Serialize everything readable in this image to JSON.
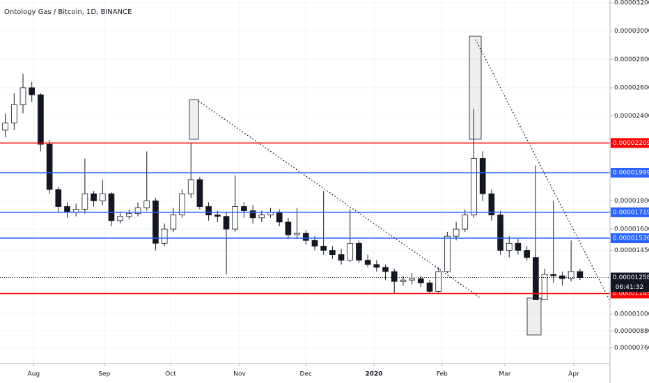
{
  "chart_data": {
    "type": "candlestick",
    "title": "Ontology Gas / Bitcoin, 1D, BINANCE",
    "open": [
      2.3e-05,
      2.35e-05,
      2.48e-05,
      2.6e-05,
      2.55e-05,
      2.2e-05,
      1.88e-05,
      1.76e-05,
      1.72e-05,
      1.74e-05,
      1.85e-05,
      1.8e-05,
      1.85e-05,
      1.66e-05,
      1.69e-05,
      1.71e-05,
      1.75e-05,
      1.8e-05,
      1.5e-05,
      1.6e-05,
      1.7e-05,
      1.85e-05,
      1.95e-05,
      1.76e-05,
      1.7e-05,
      1.69e-05,
      1.6e-05,
      1.76e-05,
      1.73e-05,
      1.68e-05,
      1.7e-05,
      1.72e-05,
      1.65e-05,
      1.56e-05,
      1.57e-05,
      1.52e-05,
      1.48e-05,
      1.45e-05,
      1.42e-05,
      1.38e-05,
      1.5e-05,
      1.38e-05,
      1.35e-05,
      1.33e-05,
      1.3e-05,
      1.23e-05,
      1.24e-05,
      1.25e-05,
      1.22e-05,
      1.16e-05,
      1.3e-05,
      1.55e-05,
      1.6e-05,
      1.7e-05,
      2.1e-05,
      1.85e-05,
      1.7e-05,
      1.45e-05,
      1.5e-05,
      1.45e-05,
      1.4e-05,
      1.1e-05,
      1.28e-05,
      1.27e-05,
      1.25e-05,
      1.3e-05
    ],
    "high": [
      2.42e-05,
      2.56e-05,
      2.7e-05,
      2.64e-05,
      2.56e-05,
      2.23e-05,
      1.9e-05,
      1.79e-05,
      1.78e-05,
      2.1e-05,
      1.87e-05,
      1.95e-05,
      1.86e-05,
      1.72e-05,
      1.74e-05,
      1.79e-05,
      2.15e-05,
      1.82e-05,
      1.64e-05,
      1.75e-05,
      1.88e-05,
      2.209e-05,
      1.97e-05,
      1.79e-05,
      1.73e-05,
      1.72e-05,
      1.98e-05,
      1.79e-05,
      1.77e-05,
      1.73e-05,
      1.75e-05,
      1.74e-05,
      1.68e-05,
      1.75e-05,
      1.59e-05,
      1.55e-05,
      1.87e-05,
      1.48e-05,
      1.46e-05,
      1.74e-05,
      1.52e-05,
      1.42e-05,
      1.38e-05,
      1.35e-05,
      1.32e-05,
      1.27e-05,
      1.29e-05,
      1.27e-05,
      1.24e-05,
      1.33e-05,
      1.58e-05,
      1.65e-05,
      1.74e-05,
      2.45e-05,
      2.15e-05,
      1.88e-05,
      1.73e-05,
      1.55e-05,
      1.53e-05,
      1.48e-05,
      2.05e-05,
      1.32e-05,
      1.8e-05,
      1.3e-05,
      1.52e-05,
      1.32e-05
    ],
    "low": [
      2.25e-05,
      2.3e-05,
      2.42e-05,
      2.5e-05,
      2.15e-05,
      1.85e-05,
      1.72e-05,
      1.68e-05,
      1.69e-05,
      1.71e-05,
      1.76e-05,
      1.77e-05,
      1.62e-05,
      1.64e-05,
      1.67e-05,
      1.69e-05,
      1.73e-05,
      1.45e-05,
      1.48e-05,
      1.58e-05,
      1.68e-05,
      1.82e-05,
      1.74e-05,
      1.66e-05,
      1.65e-05,
      1.28e-05,
      1.58e-05,
      1.68e-05,
      1.64e-05,
      1.65e-05,
      1.68e-05,
      1.62e-05,
      1.53e-05,
      1.53e-05,
      1.49e-05,
      1.45e-05,
      1.42e-05,
      1.39e-05,
      1.35e-05,
      1.37e-05,
      1.36e-05,
      1.33e-05,
      1.3e-05,
      1.24e-05,
      1.145e-05,
      1.2e-05,
      1.21e-05,
      1.19e-05,
      1.145e-05,
      1.15e-05,
      1.29e-05,
      1.52e-05,
      1.58e-05,
      1.68e-05,
      1.8e-05,
      1.66e-05,
      1.42e-05,
      1.4e-05,
      1.42e-05,
      1.38e-05,
      1.105e-05,
      1.1e-05,
      1.22e-05,
      1.2e-05,
      1.23e-05,
      1.24e-05
    ],
    "close": [
      2.35e-05,
      2.48e-05,
      2.6e-05,
      2.55e-05,
      2.2e-05,
      1.88e-05,
      1.76e-05,
      1.72e-05,
      1.74e-05,
      1.85e-05,
      1.8e-05,
      1.85e-05,
      1.66e-05,
      1.69e-05,
      1.71e-05,
      1.75e-05,
      1.8e-05,
      1.5e-05,
      1.6e-05,
      1.7e-05,
      1.85e-05,
      1.95e-05,
      1.76e-05,
      1.7e-05,
      1.69e-05,
      1.6e-05,
      1.76e-05,
      1.73e-05,
      1.68e-05,
      1.7e-05,
      1.72e-05,
      1.65e-05,
      1.56e-05,
      1.57e-05,
      1.52e-05,
      1.48e-05,
      1.45e-05,
      1.42e-05,
      1.38e-05,
      1.5e-05,
      1.38e-05,
      1.35e-05,
      1.33e-05,
      1.3e-05,
      1.23e-05,
      1.24e-05,
      1.25e-05,
      1.22e-05,
      1.16e-05,
      1.3e-05,
      1.55e-05,
      1.6e-05,
      1.7e-05,
      2.1e-05,
      1.85e-05,
      1.7e-05,
      1.45e-05,
      1.5e-05,
      1.45e-05,
      1.4e-05,
      1.1e-05,
      1.28e-05,
      1.27e-05,
      1.25e-05,
      1.3e-05,
      1.258e-05
    ],
    "up_color": "#ffffff",
    "down_color": "#131722",
    "xlim": [
      -0.6,
      68.4
    ],
    "xticks": [
      {
        "value": 3.2,
        "label": "Aug"
      },
      {
        "value": 11.2,
        "label": "Sep"
      },
      {
        "value": 18.7,
        "label": "Oct"
      },
      {
        "value": 26.5,
        "label": "Nov"
      },
      {
        "value": 34,
        "label": "Dec"
      },
      {
        "value": 41.7,
        "label": "2020"
      },
      {
        "value": 49.4,
        "label": "Feb"
      },
      {
        "value": 56.5,
        "label": "Mar"
      },
      {
        "value": 64.3,
        "label": "Apr"
      }
    ],
    "ylim": [
      6.5e-06,
      3.22e-05
    ],
    "yticks": [
      {
        "value": 3.2e-05,
        "label": "0.00003200"
      },
      {
        "value": 3e-05,
        "label": "0.00003000"
      },
      {
        "value": 2.8e-05,
        "label": "0.00002800"
      },
      {
        "value": 2.6e-05,
        "label": "0.00002600"
      },
      {
        "value": 2.4e-05,
        "label": "0.00002400"
      },
      {
        "value": 1.8e-05,
        "label": "0.00001800"
      },
      {
        "value": 1.6e-05,
        "label": "0.00001600"
      },
      {
        "value": 1.45e-05,
        "label": "0.00001450"
      },
      {
        "value": 1e-05,
        "label": "0.00001000"
      },
      {
        "value": 8.8e-06,
        "label": "0.00000880"
      },
      {
        "value": 7.6e-06,
        "label": "0.00000760"
      }
    ],
    "grid": true,
    "levels": [
      {
        "value": 2.209e-05,
        "color": "#ff0000"
      },
      {
        "value": 1.999e-05,
        "color": "#2962ff"
      },
      {
        "value": 1.719e-05,
        "color": "#2962ff"
      },
      {
        "value": 1.536e-05,
        "color": "#2962ff"
      },
      {
        "value": 1.145e-05,
        "color": "#ff0000"
      }
    ],
    "last_price": 1.258e-05,
    "countdown": "06:41:32"
  }
}
